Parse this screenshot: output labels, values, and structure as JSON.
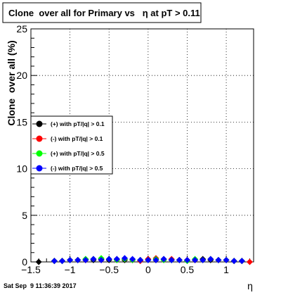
{
  "chart_data": {
    "type": "scatter",
    "title": "Clone  over all for Primary vs   η at pT > 0.11",
    "xlabel": "η",
    "ylabel": "Clone  over all (%)",
    "xlim": [
      -1.5,
      1.35
    ],
    "ylim": [
      0,
      25
    ],
    "x_major_ticks": [
      -1.5,
      -1,
      -0.5,
      0,
      0.5,
      1
    ],
    "x_tick_labels": [
      "−1.5",
      "−1",
      "−0.5",
      "0",
      "0.5",
      "1"
    ],
    "y_major_ticks": [
      0,
      5,
      10,
      15,
      20,
      25
    ],
    "y_tick_labels": [
      "0",
      "5",
      "10",
      "15",
      "20",
      "25"
    ],
    "grid": true,
    "legend_position": "middle-left",
    "series": [
      {
        "name": "(+) with pT/|q| > 0.1",
        "color": "#000000",
        "x": [
          -1.4,
          -1.2,
          -1.1,
          -1.0,
          -0.9,
          -0.8,
          -0.7,
          -0.6,
          -0.5,
          -0.4,
          -0.3,
          -0.2,
          -0.1,
          0.0,
          0.1,
          0.2,
          0.3,
          0.4,
          0.5,
          0.6,
          0.7,
          0.8,
          0.9,
          1.0,
          1.1,
          1.2
        ],
        "y": [
          0.0,
          0.1,
          0.1,
          0.2,
          0.2,
          0.3,
          0.2,
          0.3,
          0.2,
          0.3,
          0.2,
          0.2,
          0.2,
          0.3,
          0.2,
          0.3,
          0.2,
          0.2,
          0.2,
          0.2,
          0.3,
          0.2,
          0.2,
          0.2,
          0.1,
          0.1
        ]
      },
      {
        "name": "(-) with pT/|q| > 0.1",
        "color": "#ff0000",
        "x": [
          -1.2,
          -1.1,
          -1.0,
          -0.9,
          -0.8,
          -0.7,
          -0.6,
          -0.5,
          -0.4,
          -0.3,
          -0.2,
          -0.1,
          0.0,
          0.1,
          0.2,
          0.3,
          0.4,
          0.5,
          0.6,
          0.7,
          0.8,
          0.9,
          1.0,
          1.1,
          1.2,
          1.3
        ],
        "y": [
          0.1,
          0.1,
          0.2,
          0.2,
          0.2,
          0.3,
          0.2,
          0.3,
          0.2,
          0.3,
          0.2,
          0.1,
          0.3,
          0.4,
          0.2,
          0.3,
          0.2,
          0.2,
          0.2,
          0.2,
          0.3,
          0.2,
          0.2,
          0.1,
          0.1,
          0.0
        ]
      },
      {
        "name": "(+) with pT/|q| > 0.5",
        "color": "#00ff00",
        "x": [
          -1.2,
          -1.1,
          -1.0,
          -0.9,
          -0.8,
          -0.7,
          -0.6,
          -0.5,
          -0.4,
          -0.3,
          -0.2,
          -0.1,
          0.0,
          0.1,
          0.2,
          0.3,
          0.4,
          0.5,
          0.6,
          0.7,
          0.8,
          0.9,
          1.0,
          1.1,
          1.2
        ],
        "y": [
          0.1,
          0.1,
          0.2,
          0.2,
          0.3,
          0.3,
          0.4,
          0.3,
          0.2,
          0.3,
          0.2,
          0.2,
          0.2,
          0.3,
          0.2,
          0.2,
          0.2,
          0.1,
          0.3,
          0.2,
          0.3,
          0.2,
          0.2,
          0.1,
          0.1
        ]
      },
      {
        "name": "(-) with pT/|q| > 0.5",
        "color": "#0000ff",
        "x": [
          -1.2,
          -1.1,
          -1.0,
          -0.9,
          -0.8,
          -0.7,
          -0.6,
          -0.5,
          -0.4,
          -0.3,
          -0.2,
          -0.1,
          0.0,
          0.1,
          0.2,
          0.3,
          0.4,
          0.5,
          0.6,
          0.7,
          0.8,
          0.9,
          1.0,
          1.1,
          1.2
        ],
        "y": [
          0.1,
          0.1,
          0.2,
          0.2,
          0.2,
          0.3,
          0.2,
          0.3,
          0.3,
          0.4,
          0.3,
          0.2,
          0.2,
          0.2,
          0.3,
          0.2,
          0.2,
          0.2,
          0.2,
          0.2,
          0.3,
          0.2,
          0.2,
          0.1,
          0.1
        ]
      }
    ]
  },
  "footer": {
    "timestamp": "Sat Sep  9 11:36:39 2017"
  }
}
